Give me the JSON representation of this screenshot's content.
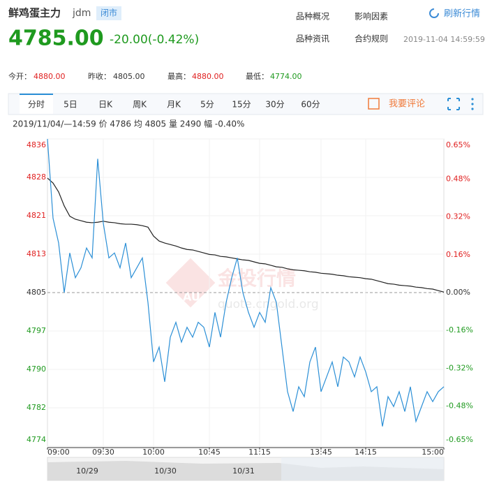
{
  "header": {
    "name": "鲜鸡蛋主力",
    "code": "jdm",
    "status": "闭市",
    "price": "4785.00",
    "change": "-20.00(-0.42%)",
    "links": [
      "品种概况",
      "影响因素",
      "品种资讯",
      "合约规则"
    ],
    "refresh": "刷新行情",
    "timestamp": "2019-11-04 14:59:59"
  },
  "stats": [
    {
      "label": "今开：",
      "value": "4880.00"
    },
    {
      "label": "昨收：",
      "value": "4805.00"
    },
    {
      "label": "最高：",
      "value": "4880.00"
    },
    {
      "label": "最低：",
      "value": "4774.00"
    }
  ],
  "tabs": [
    "分时",
    "5日",
    "日K",
    "周K",
    "月K",
    "5分",
    "15分",
    "30分",
    "60分"
  ],
  "comment": "我要评论",
  "info": "2019/11/04/—14:59  价 4786  均 4805  量 2490  幅 -0.40%",
  "watermark": {
    "brand": "金投行情",
    "site": "quote.cngold.org",
    "logo": "AU"
  },
  "navigator": {
    "dates": [
      "10/29",
      "10/30",
      "10/31"
    ]
  },
  "chart_data": {
    "type": "line",
    "grid": true,
    "categories": [
      "09:00",
      null,
      null,
      null,
      null,
      null,
      null,
      null,
      null,
      null,
      "09:30",
      null,
      null,
      null,
      null,
      null,
      null,
      null,
      null,
      "10:00",
      null,
      null,
      null,
      null,
      null,
      null,
      null,
      null,
      null,
      "10:45",
      null,
      null,
      null,
      null,
      null,
      null,
      null,
      null,
      "11:15",
      null,
      null,
      null,
      null,
      null,
      null,
      null,
      null,
      null,
      null,
      "13:45",
      null,
      null,
      null,
      null,
      null,
      null,
      null,
      "14:15",
      null,
      null,
      null,
      null,
      null,
      null,
      null,
      null,
      null,
      null,
      null,
      null,
      null,
      "15:00"
    ],
    "series": [
      {
        "name": "价",
        "color": "#2b8fd6",
        "values": [
          4836,
          4820,
          4815,
          4805,
          4813,
          4808,
          4810,
          4814,
          4812,
          4832,
          4819,
          4812,
          4813,
          4810,
          4815,
          4808,
          4810,
          4812,
          4803,
          4791,
          4794,
          4787,
          4796,
          4799,
          4795,
          4798,
          4796,
          4799,
          4798,
          4794,
          4801,
          4796,
          4803,
          4808,
          4812,
          4805,
          4801,
          4798,
          4801,
          4799,
          4806,
          4803,
          4794,
          4785,
          4781,
          4786,
          4784,
          4791,
          4794,
          4785,
          4788,
          4791,
          4786,
          4792,
          4791,
          4788,
          4792,
          4789,
          4785,
          4786,
          4778,
          4784,
          4782,
          4785,
          4781,
          4786,
          4779,
          4782,
          4785,
          4783,
          4785,
          4786
        ]
      },
      {
        "name": "均",
        "color": "#222222",
        "values": [
          4828.1,
          4827.1,
          4825.3,
          4822.5,
          4820.4,
          4819.8,
          4819.5,
          4819.2,
          4819.1,
          4819.2,
          4819.4,
          4819.2,
          4819.1,
          4818.9,
          4818.8,
          4818.8,
          4818.7,
          4818.5,
          4818.2,
          4816.4,
          4815.4,
          4815.0,
          4814.7,
          4814.4,
          4814.0,
          4813.7,
          4813.6,
          4813.3,
          4813.0,
          4812.7,
          4812.6,
          4812.3,
          4812.2,
          4812.0,
          4811.8,
          4811.6,
          4811.5,
          4811.2,
          4810.9,
          4810.8,
          4810.5,
          4810.2,
          4810.1,
          4809.8,
          4809.6,
          4809.5,
          4809.4,
          4809.2,
          4809.1,
          4808.9,
          4808.8,
          4808.7,
          4808.5,
          4808.4,
          4808.2,
          4808.1,
          4808.0,
          4807.8,
          4807.7,
          4807.4,
          4807.1,
          4806.8,
          4806.7,
          4806.5,
          4806.4,
          4806.3,
          4806.1,
          4806.0,
          4805.8,
          4805.7,
          4805.4,
          4805.1
        ]
      }
    ],
    "ylim": [
      4774,
      4836
    ],
    "yticks": [
      4836,
      {
        "value": 4828.25,
        "label": "4828"
      },
      {
        "value": 4820.5,
        "label": "4821"
      },
      {
        "value": 4812.75,
        "label": "4813"
      },
      4805,
      {
        "value": 4797.25,
        "label": "4797"
      },
      {
        "value": 4789.5,
        "label": "4790"
      },
      {
        "value": 4781.75,
        "label": "4782"
      },
      4774
    ],
    "y2lim": [
      -0.65,
      0.65
    ],
    "y2ticks": [
      {
        "value": 0.65,
        "label": "0.65%"
      },
      {
        "value": 0.48,
        "label": "0.48%"
      },
      {
        "value": 0.32,
        "label": "0.32%"
      },
      {
        "value": 0.16,
        "label": "0.16%"
      },
      {
        "value": 0,
        "label": "0.00%"
      },
      {
        "value": -0.16,
        "label": "-0.16%"
      },
      {
        "value": -0.32,
        "label": "-0.32%"
      },
      {
        "value": -0.48,
        "label": "-0.48%"
      },
      {
        "value": -0.65,
        "label": "-0.65%"
      }
    ]
  }
}
